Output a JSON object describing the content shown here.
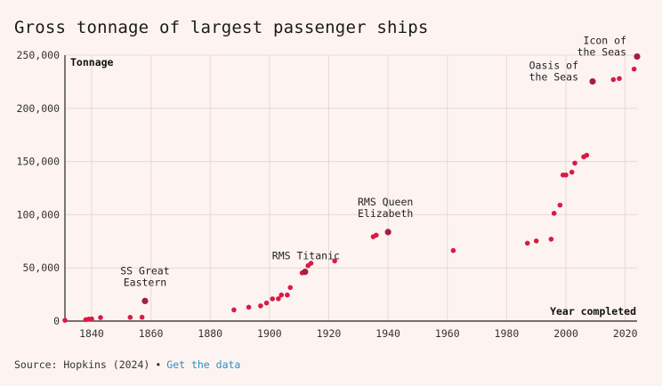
{
  "title": "Gross tonnage of largest passenger ships",
  "source": {
    "text": "Source: Hopkins (2024)",
    "separator": "•",
    "link_label": "Get the data"
  },
  "colors": {
    "background": "#fdf4f1",
    "point": "#d81b45",
    "highlight": "#a3213f",
    "grid": "#e7d8d5",
    "axis": "#222222"
  },
  "chart_data": {
    "type": "scatter",
    "title": "Gross tonnage of largest passenger ships",
    "xlabel": "Year completed",
    "ylabel": "Tonnage",
    "xlim": [
      1831,
      2024
    ],
    "ylim": [
      0,
      250000
    ],
    "x_ticks": [
      1840,
      1860,
      1880,
      1900,
      1920,
      1940,
      1960,
      1980,
      2000,
      2020
    ],
    "y_ticks": [
      0,
      50000,
      100000,
      150000,
      200000,
      250000
    ],
    "y_tick_labels": [
      "0",
      "50,000",
      "100,000",
      "150,000",
      "200,000",
      "250,000"
    ],
    "grid": true,
    "points": [
      {
        "x": 1831,
        "y": 700
      },
      {
        "x": 1838,
        "y": 1300
      },
      {
        "x": 1839,
        "y": 1800
      },
      {
        "x": 1840,
        "y": 2000
      },
      {
        "x": 1843,
        "y": 3300
      },
      {
        "x": 1853,
        "y": 3500
      },
      {
        "x": 1857,
        "y": 3600
      },
      {
        "x": 1858,
        "y": 18900,
        "highlight": true,
        "label": [
          "SS Great",
          "Eastern"
        ]
      },
      {
        "x": 1888,
        "y": 10500
      },
      {
        "x": 1893,
        "y": 13000
      },
      {
        "x": 1897,
        "y": 14300
      },
      {
        "x": 1899,
        "y": 17000
      },
      {
        "x": 1901,
        "y": 20900
      },
      {
        "x": 1903,
        "y": 21000
      },
      {
        "x": 1904,
        "y": 24500
      },
      {
        "x": 1906,
        "y": 24500
      },
      {
        "x": 1907,
        "y": 31500
      },
      {
        "x": 1911,
        "y": 45300
      },
      {
        "x": 1912,
        "y": 46300,
        "highlight": true,
        "label": [
          "RMS Titanic"
        ]
      },
      {
        "x": 1913,
        "y": 52100
      },
      {
        "x": 1914,
        "y": 54300
      },
      {
        "x": 1922,
        "y": 56500
      },
      {
        "x": 1935,
        "y": 79300
      },
      {
        "x": 1936,
        "y": 80800
      },
      {
        "x": 1940,
        "y": 83700,
        "highlight": true,
        "label": [
          "RMS Queen",
          "Elizabeth"
        ]
      },
      {
        "x": 1962,
        "y": 66300
      },
      {
        "x": 1987,
        "y": 73200
      },
      {
        "x": 1990,
        "y": 75300
      },
      {
        "x": 1995,
        "y": 77000
      },
      {
        "x": 1996,
        "y": 101300
      },
      {
        "x": 1998,
        "y": 109000
      },
      {
        "x": 1999,
        "y": 137300
      },
      {
        "x": 2000,
        "y": 137300
      },
      {
        "x": 2002,
        "y": 140000
      },
      {
        "x": 2003,
        "y": 148500
      },
      {
        "x": 2006,
        "y": 154400
      },
      {
        "x": 2007,
        "y": 155900
      },
      {
        "x": 2009,
        "y": 225300,
        "highlight": true,
        "label": [
          "Oasis of",
          "the Seas"
        ]
      },
      {
        "x": 2016,
        "y": 227000
      },
      {
        "x": 2018,
        "y": 228000
      },
      {
        "x": 2023,
        "y": 236900
      },
      {
        "x": 2024,
        "y": 248700,
        "highlight": true,
        "label": [
          "Icon of",
          "the Seas"
        ]
      }
    ]
  }
}
